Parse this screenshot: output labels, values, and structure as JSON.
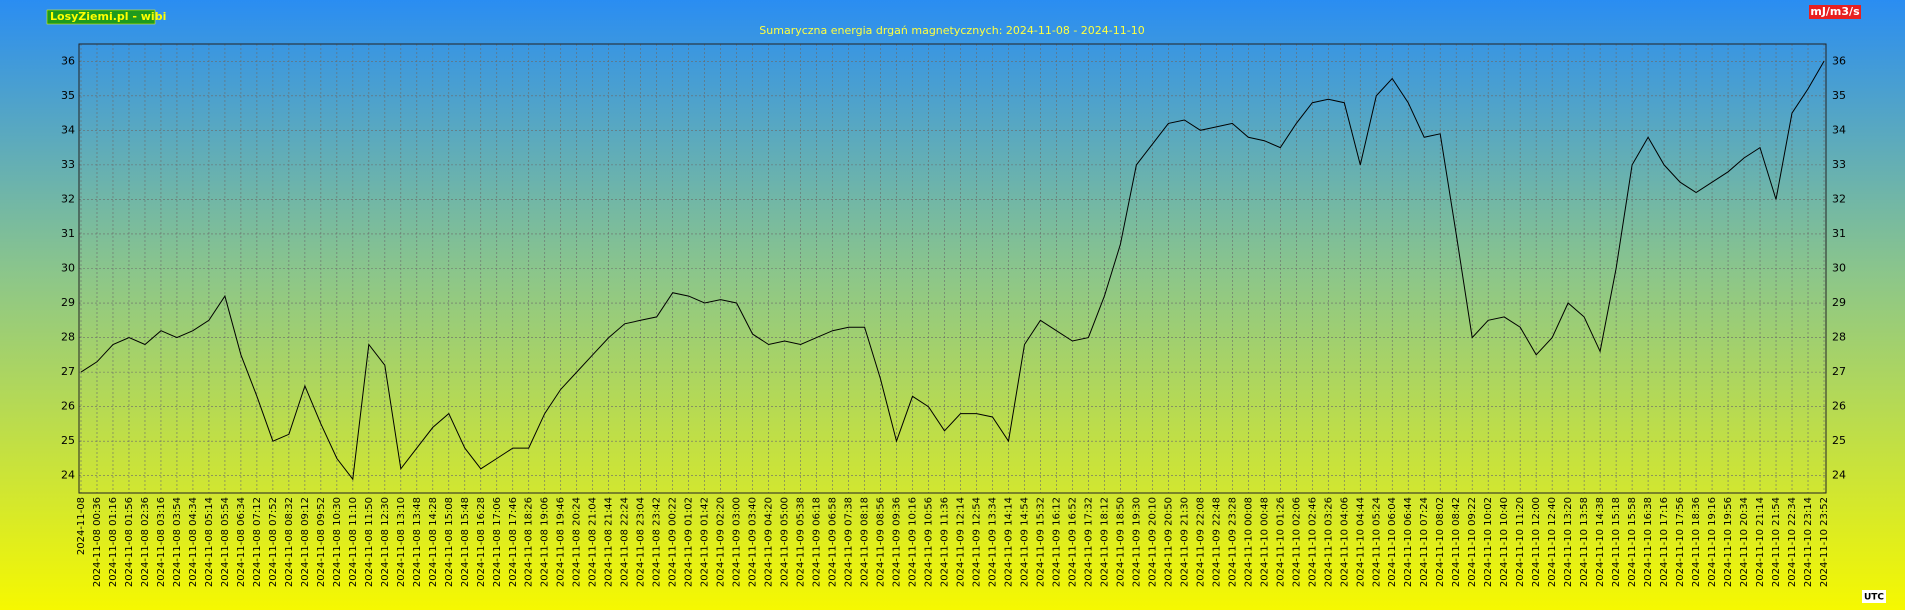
{
  "chart_data": {
    "type": "line",
    "source": "LosyZiemi.pl - wibi",
    "title": "Sumaryczna energia drgań magnetycznych: 2024-11-08 - 2024-11-10",
    "unit": "mJ/m3/s",
    "timezone": "UTC",
    "categories": [
      "2024-11-08",
      "2024-11-08 00:36",
      "2024-11-08 01:16",
      "2024-11-08 01:56",
      "2024-11-08 02:36",
      "2024-11-08 03:16",
      "2024-11-08 03:54",
      "2024-11-08 04:34",
      "2024-11-08 05:14",
      "2024-11-08 05:54",
      "2024-11-08 06:34",
      "2024-11-08 07:12",
      "2024-11-08 07:52",
      "2024-11-08 08:32",
      "2024-11-08 09:12",
      "2024-11-08 09:52",
      "2024-11-08 10:30",
      "2024-11-08 11:10",
      "2024-11-08 11:50",
      "2024-11-08 12:30",
      "2024-11-08 13:10",
      "2024-11-08 13:48",
      "2024-11-08 14:28",
      "2024-11-08 15:08",
      "2024-11-08 15:48",
      "2024-11-08 16:28",
      "2024-11-08 17:06",
      "2024-11-08 17:46",
      "2024-11-08 18:26",
      "2024-11-08 19:06",
      "2024-11-08 19:46",
      "2024-11-08 20:24",
      "2024-11-08 21:04",
      "2024-11-08 21:44",
      "2024-11-08 22:24",
      "2024-11-08 23:04",
      "2024-11-08 23:42",
      "2024-11-09 00:22",
      "2024-11-09 01:02",
      "2024-11-09 01:42",
      "2024-11-09 02:20",
      "2024-11-09 03:00",
      "2024-11-09 03:40",
      "2024-11-09 04:20",
      "2024-11-09 05:00",
      "2024-11-09 05:38",
      "2024-11-09 06:18",
      "2024-11-09 06:58",
      "2024-11-09 07:38",
      "2024-11-09 08:18",
      "2024-11-09 08:56",
      "2024-11-09 09:36",
      "2024-11-09 10:16",
      "2024-11-09 10:56",
      "2024-11-09 11:36",
      "2024-11-09 12:14",
      "2024-11-09 12:54",
      "2024-11-09 13:34",
      "2024-11-09 14:14",
      "2024-11-09 14:54",
      "2024-11-09 15:32",
      "2024-11-09 16:12",
      "2024-11-09 16:52",
      "2024-11-09 17:32",
      "2024-11-09 18:12",
      "2024-11-09 18:50",
      "2024-11-09 19:30",
      "2024-11-09 20:10",
      "2024-11-09 20:50",
      "2024-11-09 21:30",
      "2024-11-09 22:08",
      "2024-11-09 22:48",
      "2024-11-09 23:28",
      "2024-11-10 00:08",
      "2024-11-10 00:48",
      "2024-11-10 01:26",
      "2024-11-10 02:06",
      "2024-11-10 02:46",
      "2024-11-10 03:26",
      "2024-11-10 04:06",
      "2024-11-10 04:44",
      "2024-11-10 05:24",
      "2024-11-10 06:04",
      "2024-11-10 06:44",
      "2024-11-10 07:24",
      "2024-11-10 08:02",
      "2024-11-10 08:42",
      "2024-11-10 09:22",
      "2024-11-10 10:02",
      "2024-11-10 10:40",
      "2024-11-10 11:20",
      "2024-11-10 12:00",
      "2024-11-10 12:40",
      "2024-11-10 13:20",
      "2024-11-10 13:58",
      "2024-11-10 14:38",
      "2024-11-10 15:18",
      "2024-11-10 15:58",
      "2024-11-10 16:38",
      "2024-11-10 17:16",
      "2024-11-10 17:56",
      "2024-11-10 18:36",
      "2024-11-10 19:16",
      "2024-11-10 19:56",
      "2024-11-10 20:34",
      "2024-11-10 21:14",
      "2024-11-10 21:54",
      "2024-11-10 22:34",
      "2024-11-10 23:14",
      "2024-11-10 23:52"
    ],
    "series": [
      {
        "color": "#000000",
        "values": [
          27.0,
          27.3,
          27.8,
          28.0,
          27.8,
          28.2,
          28.0,
          28.2,
          28.5,
          29.2,
          27.5,
          26.3,
          25.0,
          25.2,
          26.6,
          25.5,
          24.5,
          23.9,
          27.8,
          27.2,
          24.2,
          24.8,
          25.4,
          25.8,
          24.8,
          24.2,
          24.5,
          24.8,
          24.8,
          25.8,
          26.5,
          27.0,
          27.5,
          28.0,
          28.4,
          28.5,
          28.6,
          29.3,
          29.2,
          29.0,
          29.1,
          29.0,
          28.1,
          27.8,
          27.9,
          27.8,
          28.0,
          28.2,
          28.3,
          28.3,
          26.8,
          25.0,
          26.3,
          26.0,
          25.3,
          25.8,
          25.8,
          25.7,
          25.0,
          27.8,
          28.5,
          28.2,
          27.9,
          28.0,
          29.2,
          30.7,
          33.0,
          33.6,
          34.2,
          34.3,
          34.0,
          34.1,
          34.2,
          33.8,
          33.7,
          33.5,
          34.2,
          34.8,
          34.9,
          34.8,
          33.0,
          35.0,
          35.5,
          34.8,
          33.8,
          33.9,
          31.0,
          28.0,
          28.5,
          28.6,
          28.3,
          27.5,
          28.0,
          29.0,
          28.6,
          27.6,
          30.0,
          33.0,
          33.8,
          33.0,
          32.5,
          32.2,
          32.5,
          32.8,
          33.2,
          33.5,
          32.0,
          34.5,
          35.2,
          36.0
        ]
      }
    ],
    "ylim": [
      23.5,
      36.5
    ],
    "yticks": [
      24,
      25,
      26,
      27,
      28,
      29,
      30,
      31,
      32,
      33,
      34,
      35,
      36
    ],
    "grid": true
  }
}
